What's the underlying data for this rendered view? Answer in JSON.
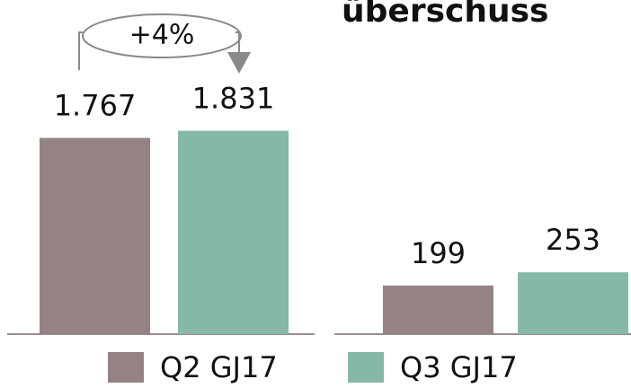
{
  "chart_data": [
    {
      "type": "bar",
      "annotation": "+4%",
      "ylim": [
        0,
        2200
      ],
      "series": [
        {
          "name": "Q2 GJ17",
          "color": "#958384",
          "values": [
            1767
          ],
          "value_labels": [
            "1.767"
          ]
        },
        {
          "name": "Q3 GJ17",
          "color": "#85b8a8",
          "values": [
            1831
          ],
          "value_labels": [
            "1.831"
          ]
        }
      ]
    },
    {
      "type": "bar",
      "title": "überschuss",
      "ylim": [
        0,
        1000
      ],
      "series": [
        {
          "name": "Q2 GJ17",
          "color": "#958384",
          "values": [
            199
          ],
          "value_labels": [
            "199"
          ]
        },
        {
          "name": "Q3 GJ17",
          "color": "#85b8a8",
          "values": [
            253
          ],
          "value_labels": [
            "253"
          ]
        }
      ]
    }
  ]
}
